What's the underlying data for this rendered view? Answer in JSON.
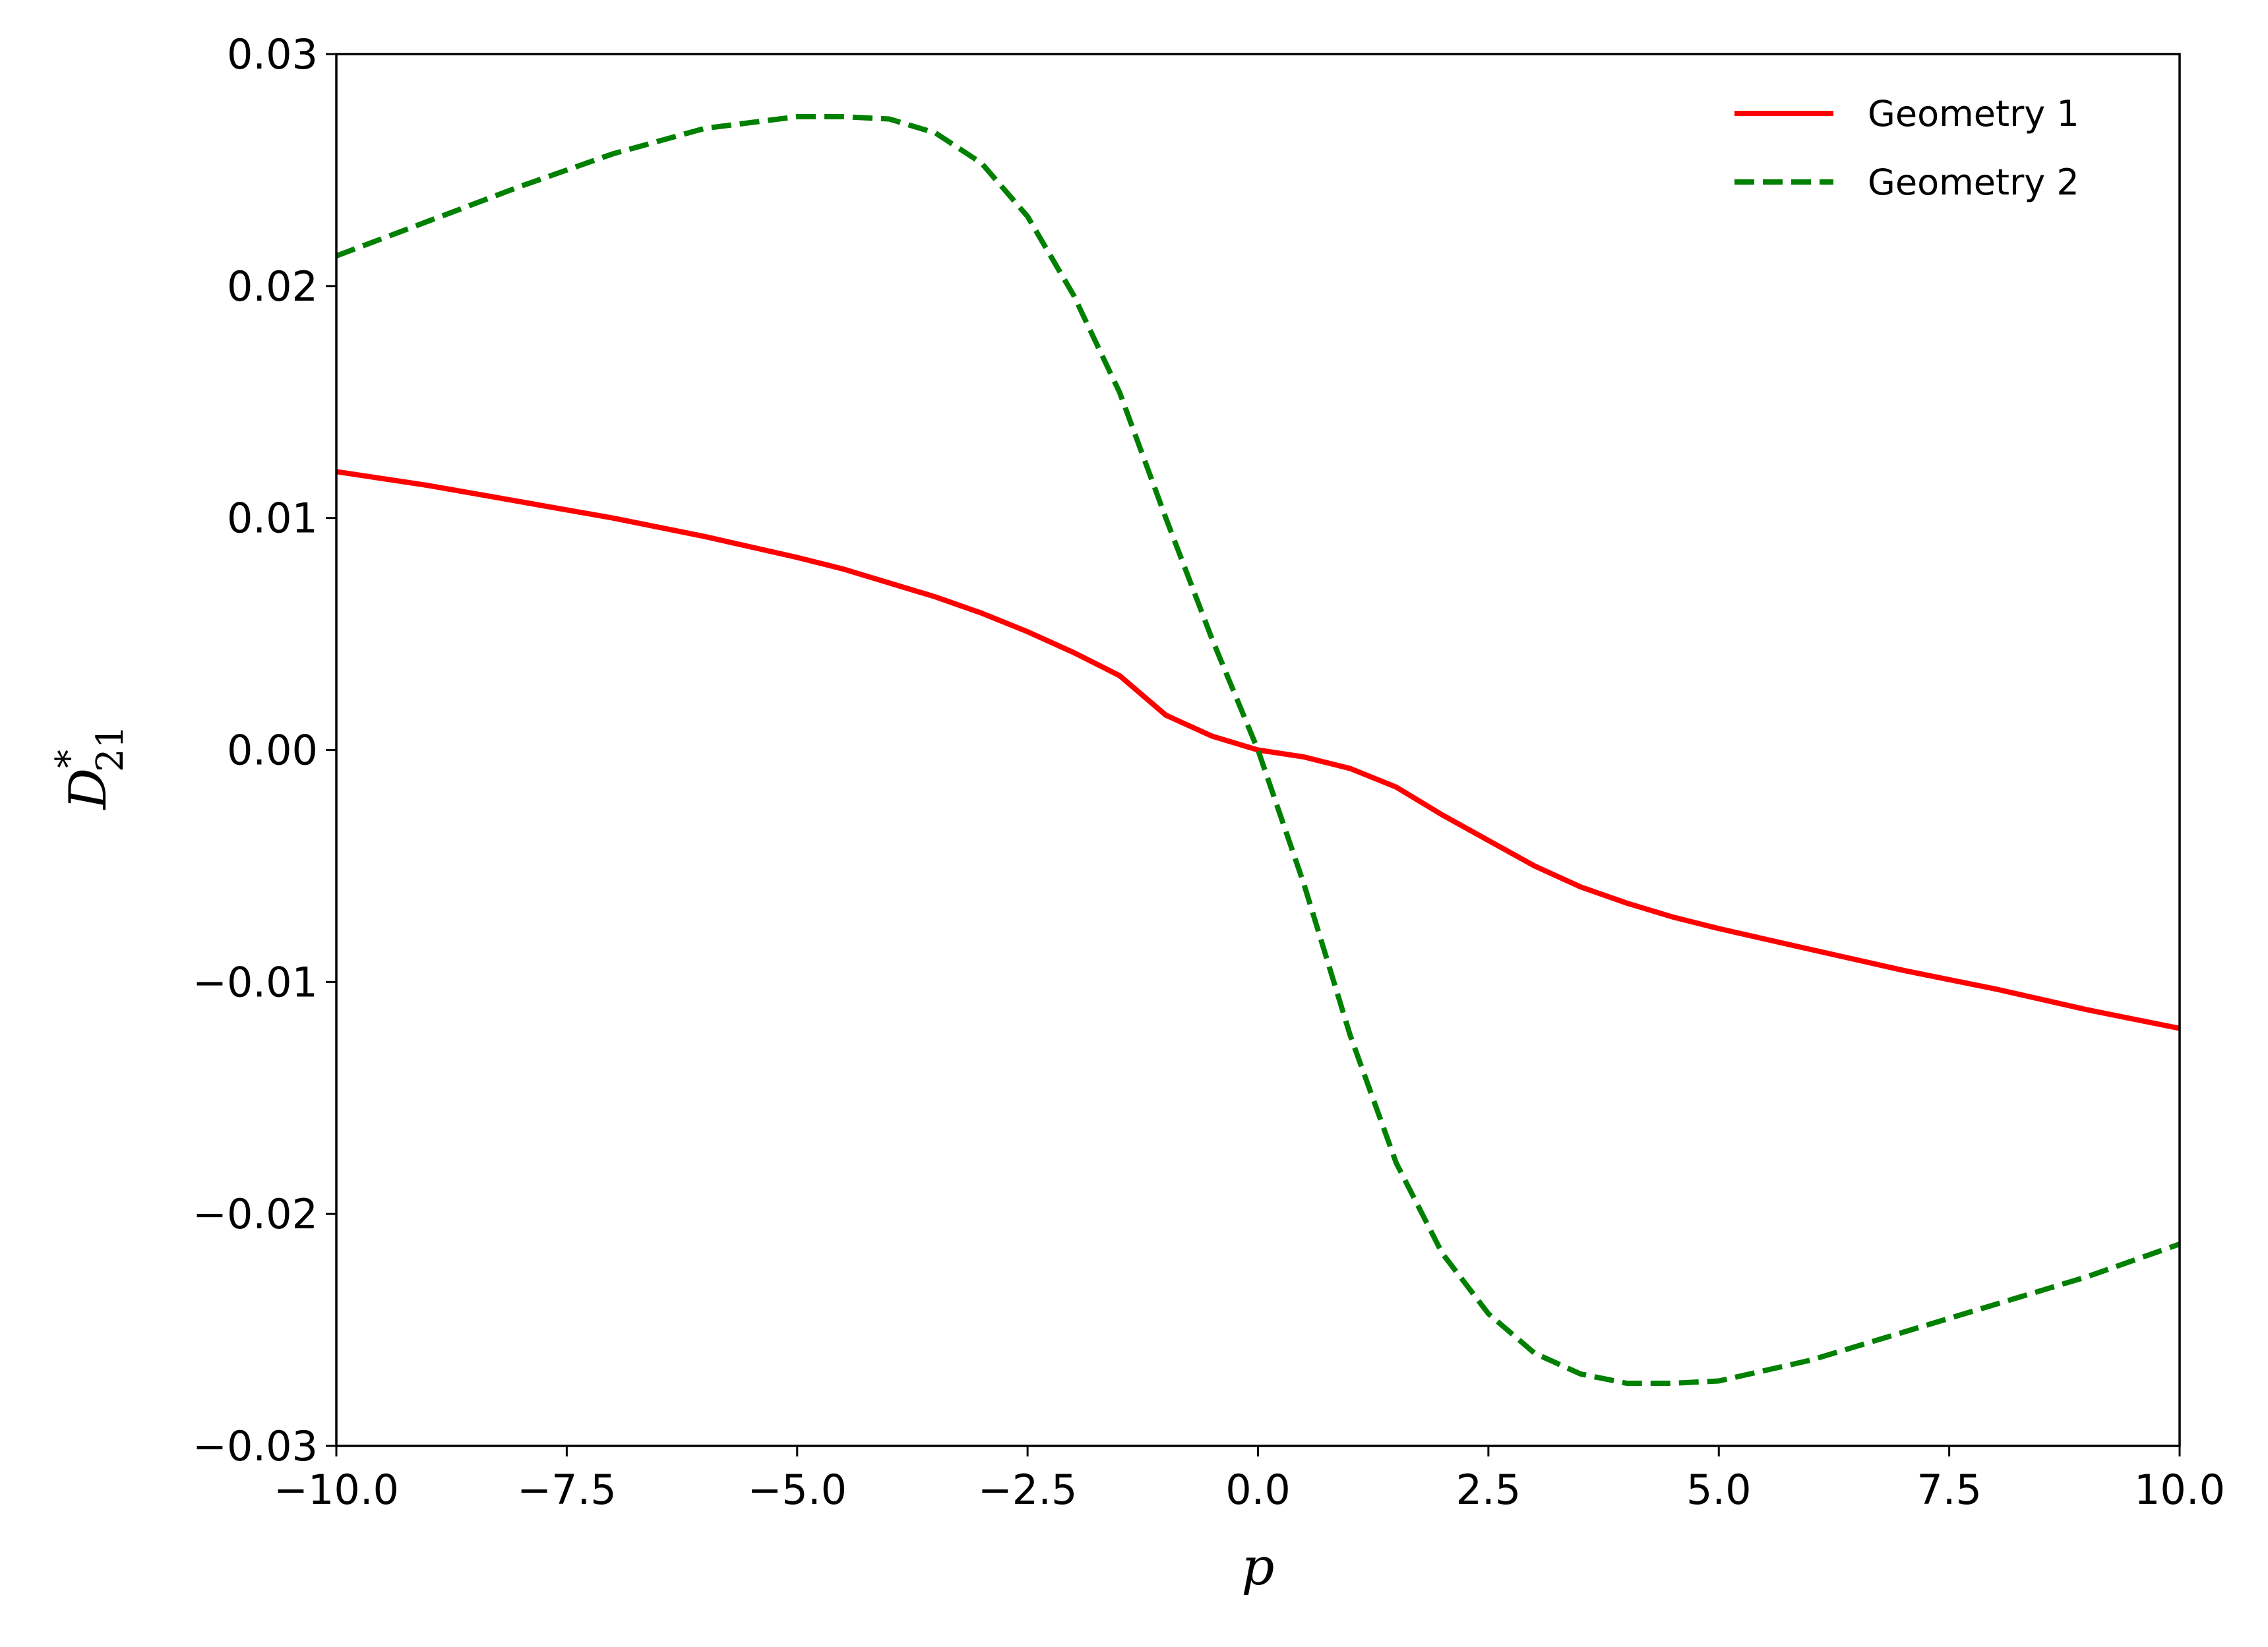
{
  "chart_data": {
    "type": "line",
    "xlabel": "p",
    "ylabel": {
      "base": "D",
      "sup": "*",
      "sub": "21"
    },
    "xlim": [
      -10,
      10
    ],
    "ylim": [
      -0.03,
      0.03
    ],
    "xticks": [
      -10,
      -7.5,
      -5,
      -2.5,
      0,
      2.5,
      5,
      7.5,
      10
    ],
    "xtick_labels": [
      "−10.0",
      "−7.5",
      "−5.0",
      "−2.5",
      "0.0",
      "2.5",
      "5.0",
      "7.5",
      "10.0"
    ],
    "yticks": [
      -0.03,
      -0.02,
      -0.01,
      0,
      0.01,
      0.02,
      0.03
    ],
    "ytick_labels": [
      "−0.03",
      "−0.02",
      "−0.01",
      "0.00",
      "0.01",
      "0.02",
      "0.03"
    ],
    "grid": false,
    "legend_position": "top-right",
    "series": [
      {
        "name": "Geometry 1",
        "color": "#ff0000",
        "style": "solid",
        "x": [
          -10,
          -9,
          -8,
          -7,
          -6,
          -5,
          -4.5,
          -4,
          -3.5,
          -3,
          -2.5,
          -2,
          -1.5,
          -1,
          -0.5,
          0,
          0.5,
          1,
          1.5,
          2,
          2.5,
          3,
          3.5,
          4,
          4.5,
          5,
          6,
          7,
          8,
          9,
          10
        ],
        "y": [
          0.012,
          0.0114,
          0.0107,
          0.01,
          0.0092,
          0.0083,
          0.0078,
          0.0072,
          0.0066,
          0.0059,
          0.0051,
          0.0042,
          0.0032,
          0.0015,
          0.0006,
          0.0,
          -0.0003,
          -0.0008,
          -0.0016,
          -0.0028,
          -0.0039,
          -0.005,
          -0.0059,
          -0.0066,
          -0.0072,
          -0.0077,
          -0.0086,
          -0.0095,
          -0.0103,
          -0.0112,
          -0.012
        ]
      },
      {
        "name": "Geometry 2",
        "color": "#008000",
        "style": "dashed",
        "x": [
          -10,
          -9,
          -8,
          -7,
          -6,
          -5,
          -4.5,
          -4,
          -3.5,
          -3,
          -2.5,
          -2,
          -1.5,
          -1,
          -0.5,
          0,
          0.5,
          1,
          1.5,
          2,
          2.5,
          3,
          3.5,
          4,
          4.5,
          5,
          6,
          7,
          8,
          9,
          10
        ],
        "y": [
          0.0213,
          0.0228,
          0.0243,
          0.0257,
          0.0268,
          0.0273,
          0.0273,
          0.0272,
          0.0266,
          0.0253,
          0.023,
          0.0196,
          0.0154,
          0.01,
          0.0048,
          0.0,
          -0.0058,
          -0.0123,
          -0.0178,
          -0.0217,
          -0.0243,
          -0.026,
          -0.0269,
          -0.0273,
          -0.0273,
          -0.0272,
          -0.0263,
          -0.0251,
          -0.0239,
          -0.0227,
          -0.0213
        ]
      }
    ]
  }
}
